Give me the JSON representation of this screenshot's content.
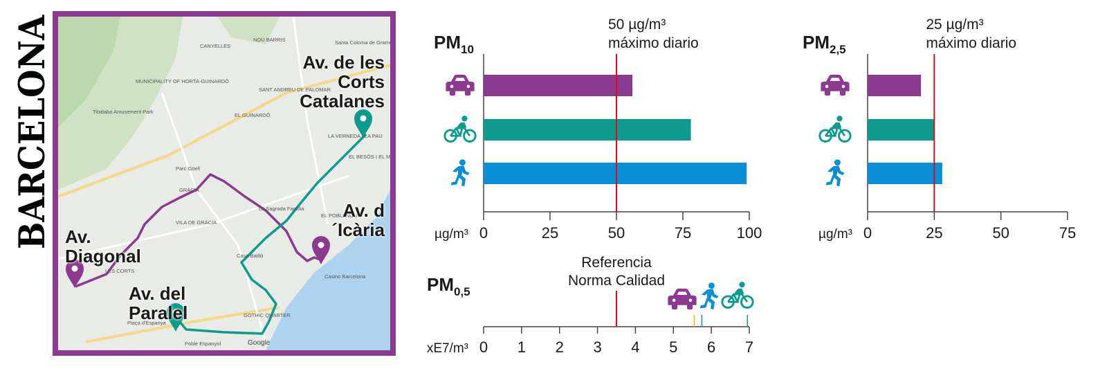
{
  "title": "BARCELONA",
  "map": {
    "place_labels": [
      {
        "text": "Av. de les Corts Catalanes"
      },
      {
        "text": "Av. d´Icària"
      },
      {
        "text": "Av. Diagonal"
      },
      {
        "text": "Av. del Paralel"
      }
    ],
    "basemap_labels": [
      "NOU BARRIS",
      "CANYELLES",
      "Santa Coloma de Gramenet",
      "MUNICIPALITY OF HORTA-GUINARDÓ",
      "SANT ANDREU DE PALOMAR",
      "EL GUINARDÓ",
      "GRÀCIA",
      "VILA DE GRÀCIA",
      "La Sagrada Família",
      "LES CORTS",
      "GOTHIC QUARTER",
      "Poble Espanyol",
      "Casino Barcelona",
      "EL BESÒS I EL MARESME",
      "LA VERNEDA I LA PAU",
      "EL POBLENOU",
      "Parc Güell",
      "Tibidabo Amusement Park",
      "Casa Batlló",
      "Plaça d'Espanya",
      "Google"
    ],
    "colors": {
      "car": "#8b3a8f",
      "bike": "#0e9b8e",
      "walk": "#0a8fd6",
      "water": "#aed3ee"
    }
  },
  "chart_data": [
    {
      "type": "bar",
      "id": "pm10",
      "title": "PM10",
      "title_main": "PM",
      "title_sub": "10",
      "orientation": "horizontal",
      "categories": [
        "car",
        "bike",
        "walk"
      ],
      "icon_names": [
        "car-icon",
        "bike-icon",
        "walk-icon"
      ],
      "values": [
        56,
        78,
        99
      ],
      "colors": [
        "#8b3a8f",
        "#0e9b8e",
        "#0a8fd6"
      ],
      "unit_label": "µg/m³",
      "xlim": [
        0,
        100
      ],
      "ticks": [
        0,
        25,
        50,
        75,
        100
      ],
      "reference_value": 50,
      "reference_label": [
        "50 µg/m³",
        "máximo diario"
      ],
      "reference_color": "#d0111a"
    },
    {
      "type": "bar",
      "id": "pm25",
      "title": "PM2,5",
      "title_main": "PM",
      "title_sub": "2,5",
      "orientation": "horizontal",
      "categories": [
        "car",
        "bike",
        "walk"
      ],
      "icon_names": [
        "car-icon",
        "bike-icon",
        "walk-icon"
      ],
      "values": [
        20,
        25,
        28
      ],
      "colors": [
        "#8b3a8f",
        "#0e9b8e",
        "#0a8fd6"
      ],
      "unit_label": "µg/m³",
      "xlim": [
        0,
        75
      ],
      "ticks": [
        0,
        25,
        50,
        75
      ],
      "reference_value": 25,
      "reference_label": [
        "25 µg/m³",
        "máximo diario"
      ],
      "reference_color": "#d0111a"
    },
    {
      "type": "strip",
      "id": "pm05",
      "title": "PM0,5",
      "title_main": "PM",
      "title_sub": "0,5",
      "unit_label": "xE7/m³",
      "xlim": [
        0,
        7
      ],
      "ticks": [
        0,
        1,
        2,
        3,
        4,
        5,
        6,
        7
      ],
      "reference_value": 3.5,
      "reference_label": [
        "Referencia",
        "Norma Calidad"
      ],
      "reference_color": "#d0111a",
      "markers": [
        {
          "mode": "car",
          "value": 5.55,
          "color": "#f2b600",
          "icon": "car-icon"
        },
        {
          "mode": "walk",
          "value": 5.75,
          "color": "#0a8fd6",
          "icon": "walk-icon"
        },
        {
          "mode": "bike",
          "value": 6.95,
          "color": "#0e9b8e",
          "icon": "bike-icon"
        }
      ]
    }
  ]
}
